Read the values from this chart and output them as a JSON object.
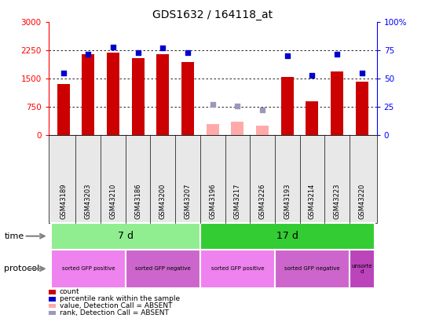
{
  "title": "GDS1632 / 164118_at",
  "samples": [
    "GSM43189",
    "GSM43203",
    "GSM43210",
    "GSM43186",
    "GSM43200",
    "GSM43207",
    "GSM43196",
    "GSM43217",
    "GSM43226",
    "GSM43193",
    "GSM43214",
    "GSM43223",
    "GSM43220"
  ],
  "count_values": [
    1350,
    2150,
    2200,
    2050,
    2150,
    1950,
    null,
    null,
    null,
    1550,
    900,
    1700,
    1430
  ],
  "count_absent": [
    null,
    null,
    null,
    null,
    null,
    null,
    300,
    350,
    250,
    null,
    null,
    null,
    null
  ],
  "percentile_values": [
    55,
    72,
    78,
    73,
    77,
    73,
    null,
    null,
    null,
    70,
    53,
    72,
    55
  ],
  "percentile_absent": [
    null,
    null,
    null,
    null,
    null,
    null,
    27,
    26,
    22,
    null,
    null,
    null,
    null
  ],
  "time_groups": [
    {
      "label": "7 d",
      "start": 0,
      "end": 6,
      "color": "#90ee90"
    },
    {
      "label": "17 d",
      "start": 6,
      "end": 13,
      "color": "#33cc33"
    }
  ],
  "protocol_groups": [
    {
      "label": "sorted GFP positive",
      "start": 0,
      "end": 3,
      "color": "#ee82ee"
    },
    {
      "label": "sorted GFP negative",
      "start": 3,
      "end": 6,
      "color": "#cc66cc"
    },
    {
      "label": "sorted GFP positive",
      "start": 6,
      "end": 9,
      "color": "#ee82ee"
    },
    {
      "label": "sorted GFP negative",
      "start": 9,
      "end": 12,
      "color": "#cc66cc"
    },
    {
      "label": "unsorte\nd",
      "start": 12,
      "end": 13,
      "color": "#bb44bb"
    }
  ],
  "ylim_left": [
    0,
    3000
  ],
  "ylim_right": [
    0,
    100
  ],
  "yticks_left": [
    0,
    750,
    1500,
    2250,
    3000
  ],
  "yticks_right": [
    0,
    25,
    50,
    75,
    100
  ],
  "bar_color": "#cc0000",
  "bar_absent_color": "#ffaaaa",
  "dot_color": "#0000cc",
  "dot_absent_color": "#9999bb",
  "bar_width": 0.5,
  "bg_color": "#e8e8e8"
}
